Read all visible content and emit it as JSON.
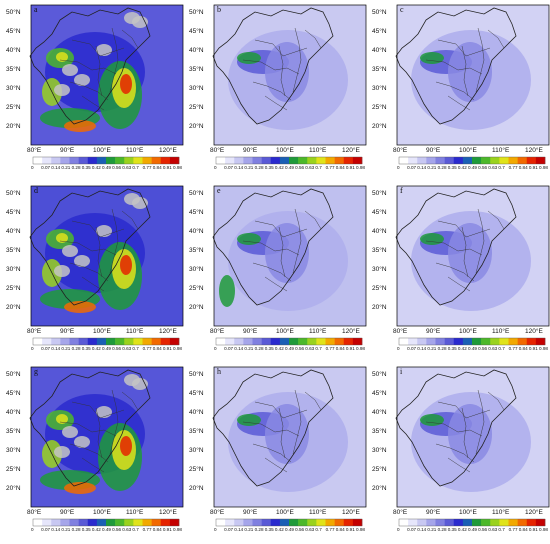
{
  "rows": [
    {
      "panels": [
        {
          "label": "a",
          "style": "obs"
        },
        {
          "label": "b",
          "style": "model"
        },
        {
          "label": "c",
          "style": "model2"
        }
      ]
    },
    {
      "panels": [
        {
          "label": "d",
          "style": "obs2"
        },
        {
          "label": "e",
          "style": "model3"
        },
        {
          "label": "f",
          "style": "model2"
        }
      ]
    },
    {
      "panels": [
        {
          "label": "g",
          "style": "obs3"
        },
        {
          "label": "h",
          "style": "model"
        },
        {
          "label": "i",
          "style": "model2"
        }
      ]
    }
  ],
  "lat_labels": [
    "50°N",
    "45°N",
    "40°N",
    "35°N",
    "30°N",
    "25°N",
    "20°N"
  ],
  "lon_labels": [
    "80°E",
    "90°E",
    "100°E",
    "110°E",
    "120°E"
  ],
  "colorbar_ticks": [
    "0",
    "0.07",
    "0.14",
    "0.21",
    "0.28",
    "0.35",
    "0.42",
    "0.49",
    "0.56",
    "0.63",
    "0.7",
    "0.77",
    "0.84",
    "0.91",
    "0.98"
  ],
  "colorbar_colors": [
    "#ffffff",
    "#e6e6fb",
    "#c8c8f2",
    "#a5a5ea",
    "#8080e0",
    "#5a5ad6",
    "#2a2ace",
    "#1a5fb5",
    "#1f9a3a",
    "#4cb82a",
    "#9ad21e",
    "#e0e31a",
    "#f2a900",
    "#f26a00",
    "#e52400",
    "#c40000"
  ]
}
